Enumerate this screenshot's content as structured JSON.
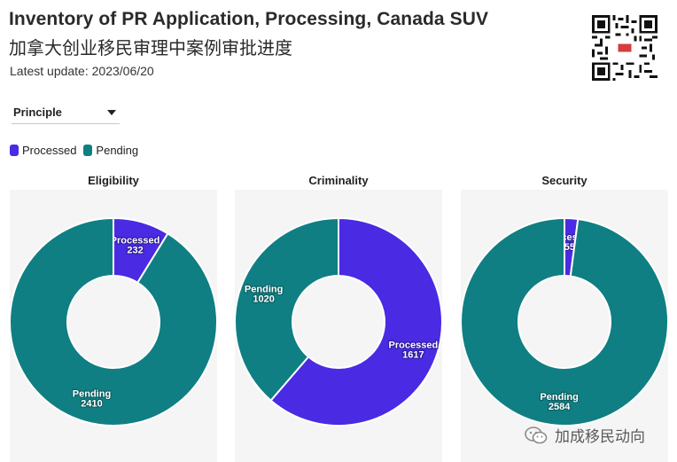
{
  "header": {
    "title": "Inventory of PR Application, Processing, Canada SUV",
    "subtitle_cn": "加拿大创业移民审理中案例审批进度",
    "updated": "Latest update: 2023/06/20"
  },
  "filter": {
    "selected": "Principle"
  },
  "legend": [
    {
      "label": "Processed",
      "color": "#4a2ae2"
    },
    {
      "label": "Pending",
      "color": "#0f7f83"
    }
  ],
  "colors": {
    "processed": "#4a2ae2",
    "pending": "#0f7f83",
    "panel_bg": "#f5f5f5"
  },
  "chart_data": [
    {
      "type": "pie",
      "title": "Eligibility",
      "donut": true,
      "slices": [
        {
          "label": "Processed",
          "value": 232
        },
        {
          "label": "Pending",
          "value": 2410
        }
      ]
    },
    {
      "type": "pie",
      "title": "Criminality",
      "donut": true,
      "slices": [
        {
          "label": "Processed",
          "value": 1617
        },
        {
          "label": "Pending",
          "value": 1020
        }
      ]
    },
    {
      "type": "pie",
      "title": "Security",
      "donut": true,
      "slices": [
        {
          "label": "Processed",
          "value": 55
        },
        {
          "label": "Pending",
          "value": 2584
        }
      ]
    }
  ],
  "watermark": {
    "text": "加成移民动向",
    "icon": "wechat-icon"
  }
}
